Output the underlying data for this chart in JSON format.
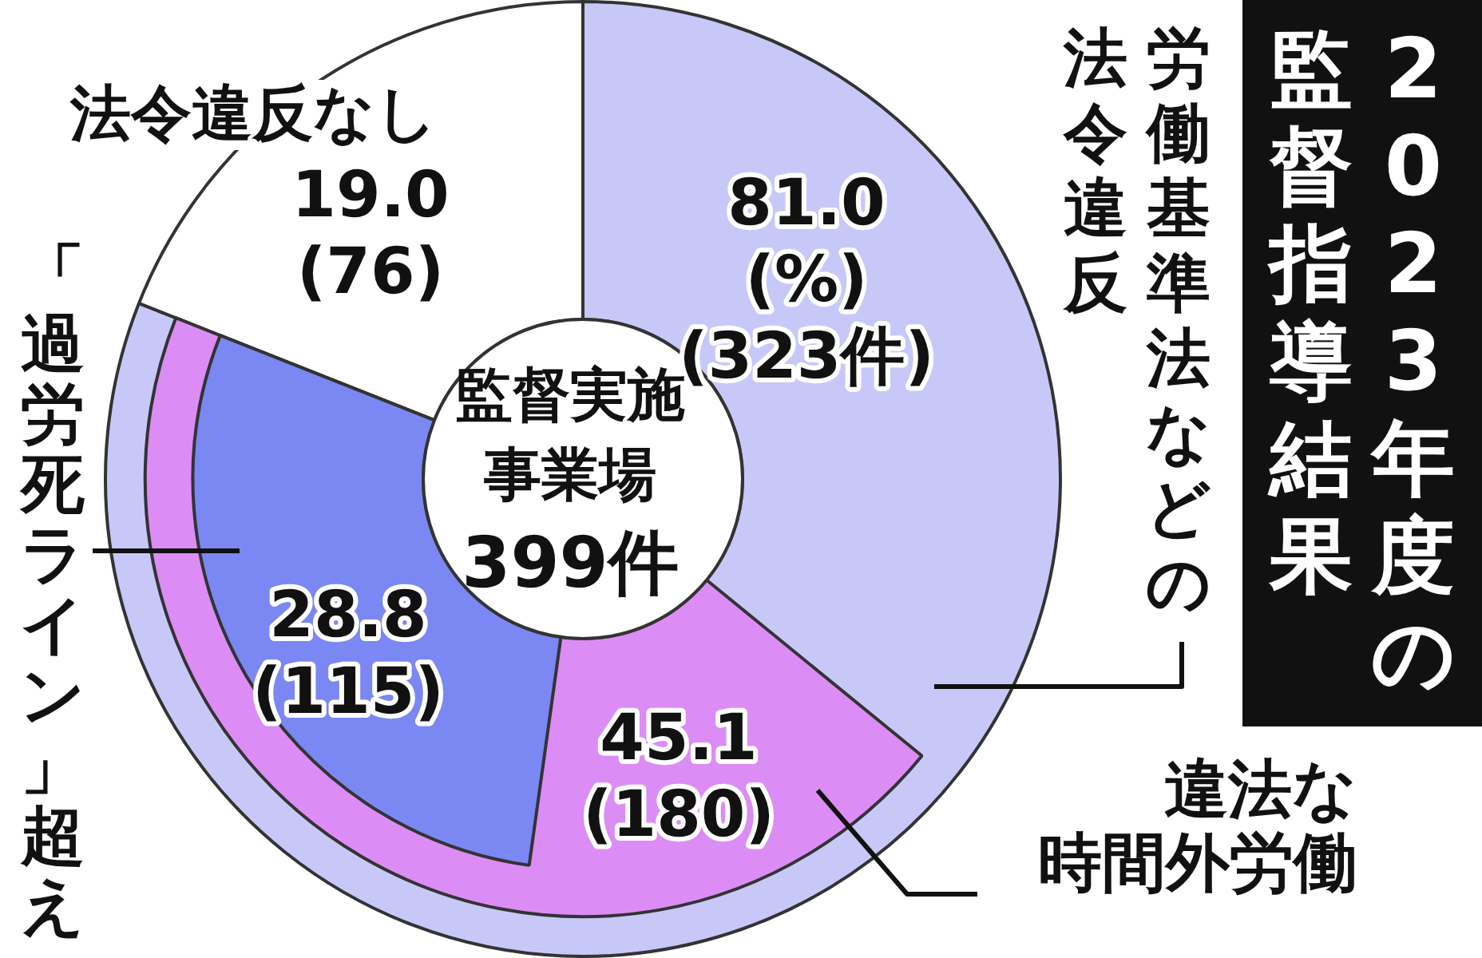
{
  "chart_data": {
    "type": "donut",
    "title": "2023年度の監督指導結果",
    "annotations": [
      "監督実施事業場",
      "399件"
    ],
    "categories": [
      "労働基準法などの法令違反",
      "法令違反なし"
    ],
    "values": [
      81.0,
      19.0
    ],
    "colors": [
      "#c8c8f8",
      "#ffffff"
    ],
    "value_labels": [
      "81.0\n(%)\n(323件)",
      "19.0\n(76)"
    ],
    "series": [
      {
        "name": "違法な時間外労働",
        "colors": [
          "#dc8cf5",
          null
        ],
        "values": [
          45.1,
          null
        ],
        "value_labels": [
          "45.1\n(180)",
          null
        ]
      },
      {
        "name": "「過労死ライン」超え",
        "colors": [
          "#7b87f2",
          null
        ],
        "values": [
          28.8,
          null
        ],
        "value_labels": [
          "28.8\n(115)",
          null
        ]
      }
    ]
  }
}
